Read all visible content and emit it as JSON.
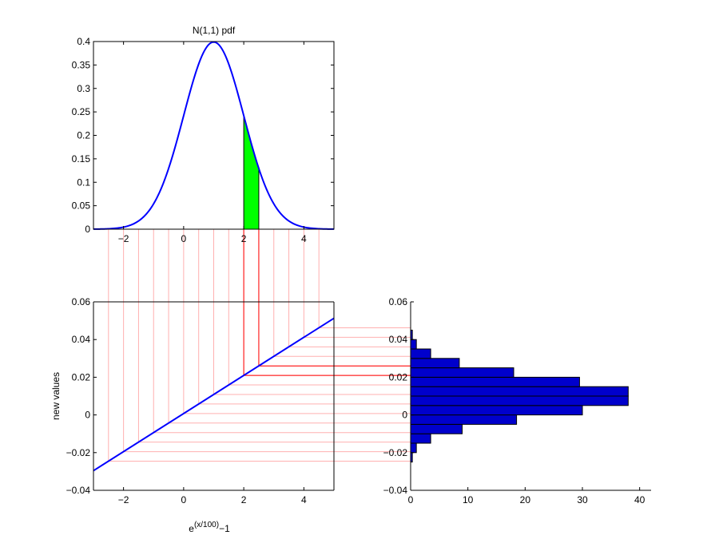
{
  "chart_data": [
    {
      "id": "pdf",
      "type": "line",
      "title": "N(1,1) pdf",
      "xlim": [
        -3,
        5
      ],
      "ylim": [
        0,
        0.4
      ],
      "xticks": [
        -2,
        0,
        2,
        4
      ],
      "yticks": [
        0,
        0.05,
        0.1,
        0.15,
        0.2,
        0.25,
        0.3,
        0.35,
        0.4
      ],
      "xtick_labels": [
        "−2",
        "0",
        "2",
        "4"
      ],
      "ytick_labels": [
        "0",
        "0.05",
        "0.1",
        "0.15",
        "0.2",
        "0.25",
        "0.3",
        "0.35",
        "0.4"
      ],
      "series": [
        {
          "mean": 1,
          "sd": 1,
          "color": "#0000ff"
        }
      ],
      "shaded_interval": [
        2,
        2.5
      ],
      "shade_color": "#00ff00",
      "grid": false
    },
    {
      "id": "transform",
      "type": "line",
      "xlabel": "e^(x/100)−1",
      "xlabel_base": "e",
      "xlabel_sup": "(x/100)",
      "xlabel_tail": "−1",
      "ylabel": "new values",
      "xlim": [
        -3,
        5
      ],
      "ylim": [
        -0.04,
        0.06
      ],
      "xticks": [
        -2,
        0,
        2,
        4
      ],
      "yticks": [
        -0.04,
        -0.02,
        0,
        0.02,
        0.04,
        0.06
      ],
      "xtick_labels": [
        "−2",
        "0",
        "2",
        "4"
      ],
      "ytick_labels": [
        "−0.04",
        "−0.02",
        "0",
        "0.02",
        "0.04",
        "0.06"
      ],
      "series": [
        {
          "x": [
            -3,
            5
          ],
          "y": [
            -0.0296,
            0.0513
          ],
          "color": "#0000ff"
        }
      ],
      "projection_lines_x": [
        -2.5,
        -2,
        -1.5,
        -1,
        -0.5,
        0,
        0.5,
        1,
        1.5,
        2,
        2.5,
        3,
        3.5,
        4,
        4.5
      ],
      "highlight_x": [
        2,
        2.5
      ],
      "line_color": "#ffb0b0",
      "highlight_color": "#ff0000",
      "grid": false
    },
    {
      "id": "histogram",
      "type": "bar",
      "orientation": "horizontal",
      "xlim": [
        0,
        42
      ],
      "ylim": [
        -0.04,
        0.06
      ],
      "xticks": [
        0,
        10,
        20,
        30,
        40
      ],
      "yticks": [
        -0.04,
        -0.02,
        0,
        0.02,
        0.04,
        0.06
      ],
      "xtick_labels": [
        "0",
        "10",
        "20",
        "30",
        "40"
      ],
      "ytick_labels": [
        "−0.04",
        "−0.02",
        "0",
        "0.02",
        "0.04",
        "0.06"
      ],
      "bin_edges": [
        -0.025,
        -0.02,
        -0.015,
        -0.01,
        -0.005,
        0,
        0.005,
        0.01,
        0.015,
        0.02,
        0.025,
        0.03,
        0.035,
        0.04,
        0.045
      ],
      "counts": [
        0.3,
        1,
        3.5,
        9,
        18.5,
        30,
        38,
        38,
        29.5,
        18,
        8.5,
        3.5,
        1,
        0.3
      ],
      "bar_color": "#0000cc",
      "grid": false
    }
  ]
}
